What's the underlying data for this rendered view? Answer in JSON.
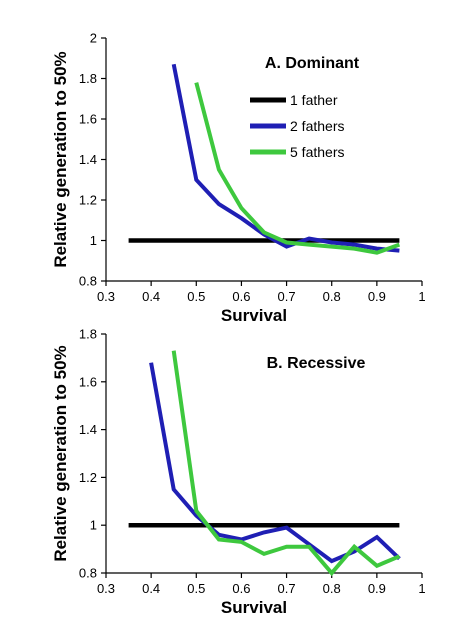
{
  "chart_data": [
    {
      "type": "line",
      "title": "A. Dominant",
      "xlabel": "Survival",
      "ylabel": "Relative generation to 50%",
      "xlim": [
        0.3,
        1
      ],
      "ylim": [
        0.8,
        2
      ],
      "xticks": [
        "0.3",
        "0.4",
        "0.5",
        "0.6",
        "0.7",
        "0.8",
        "0.9",
        "1"
      ],
      "yticks": [
        "0.8",
        "1",
        "1.2",
        "1.4",
        "1.6",
        "1.8",
        "2"
      ],
      "legend_position": "top-right",
      "series": [
        {
          "name": "1 father",
          "color": "#000000",
          "x": [
            0.35,
            0.95
          ],
          "y": [
            1.0,
            1.0
          ]
        },
        {
          "name": "2 fathers",
          "color": "#1f1fb4",
          "x": [
            0.45,
            0.5,
            0.55,
            0.6,
            0.65,
            0.7,
            0.75,
            0.8,
            0.85,
            0.9,
            0.95
          ],
          "y": [
            1.87,
            1.3,
            1.18,
            1.11,
            1.03,
            0.97,
            1.01,
            0.99,
            0.98,
            0.96,
            0.95
          ]
        },
        {
          "name": "5 fathers",
          "color": "#3ec83e",
          "x": [
            0.5,
            0.55,
            0.6,
            0.65,
            0.7,
            0.75,
            0.8,
            0.85,
            0.9,
            0.95
          ],
          "y": [
            1.78,
            1.35,
            1.16,
            1.04,
            0.99,
            0.98,
            0.97,
            0.96,
            0.94,
            0.98
          ]
        }
      ]
    },
    {
      "type": "line",
      "title": "B. Recessive",
      "xlabel": "Survival",
      "ylabel": "Relative generation to 50%",
      "xlim": [
        0.3,
        1
      ],
      "ylim": [
        0.8,
        1.8
      ],
      "xticks": [
        "0.3",
        "0.4",
        "0.5",
        "0.6",
        "0.7",
        "0.8",
        "0.9",
        "1"
      ],
      "yticks": [
        "0.8",
        "1",
        "1.2",
        "1.4",
        "1.6",
        "1.8"
      ],
      "series": [
        {
          "name": "1 father",
          "color": "#000000",
          "x": [
            0.35,
            0.95
          ],
          "y": [
            1.0,
            1.0
          ]
        },
        {
          "name": "2 fathers",
          "color": "#1f1fb4",
          "x": [
            0.4,
            0.45,
            0.5,
            0.55,
            0.6,
            0.65,
            0.7,
            0.75,
            0.8,
            0.85,
            0.9,
            0.95
          ],
          "y": [
            1.68,
            1.15,
            1.04,
            0.96,
            0.94,
            0.97,
            0.99,
            0.92,
            0.85,
            0.89,
            0.95,
            0.86
          ]
        },
        {
          "name": "5 fathers",
          "color": "#3ec83e",
          "x": [
            0.45,
            0.5,
            0.55,
            0.6,
            0.65,
            0.7,
            0.75,
            0.8,
            0.85,
            0.9,
            0.95
          ],
          "y": [
            1.73,
            1.06,
            0.94,
            0.93,
            0.88,
            0.91,
            0.91,
            0.8,
            0.91,
            0.83,
            0.87
          ]
        }
      ]
    }
  ]
}
